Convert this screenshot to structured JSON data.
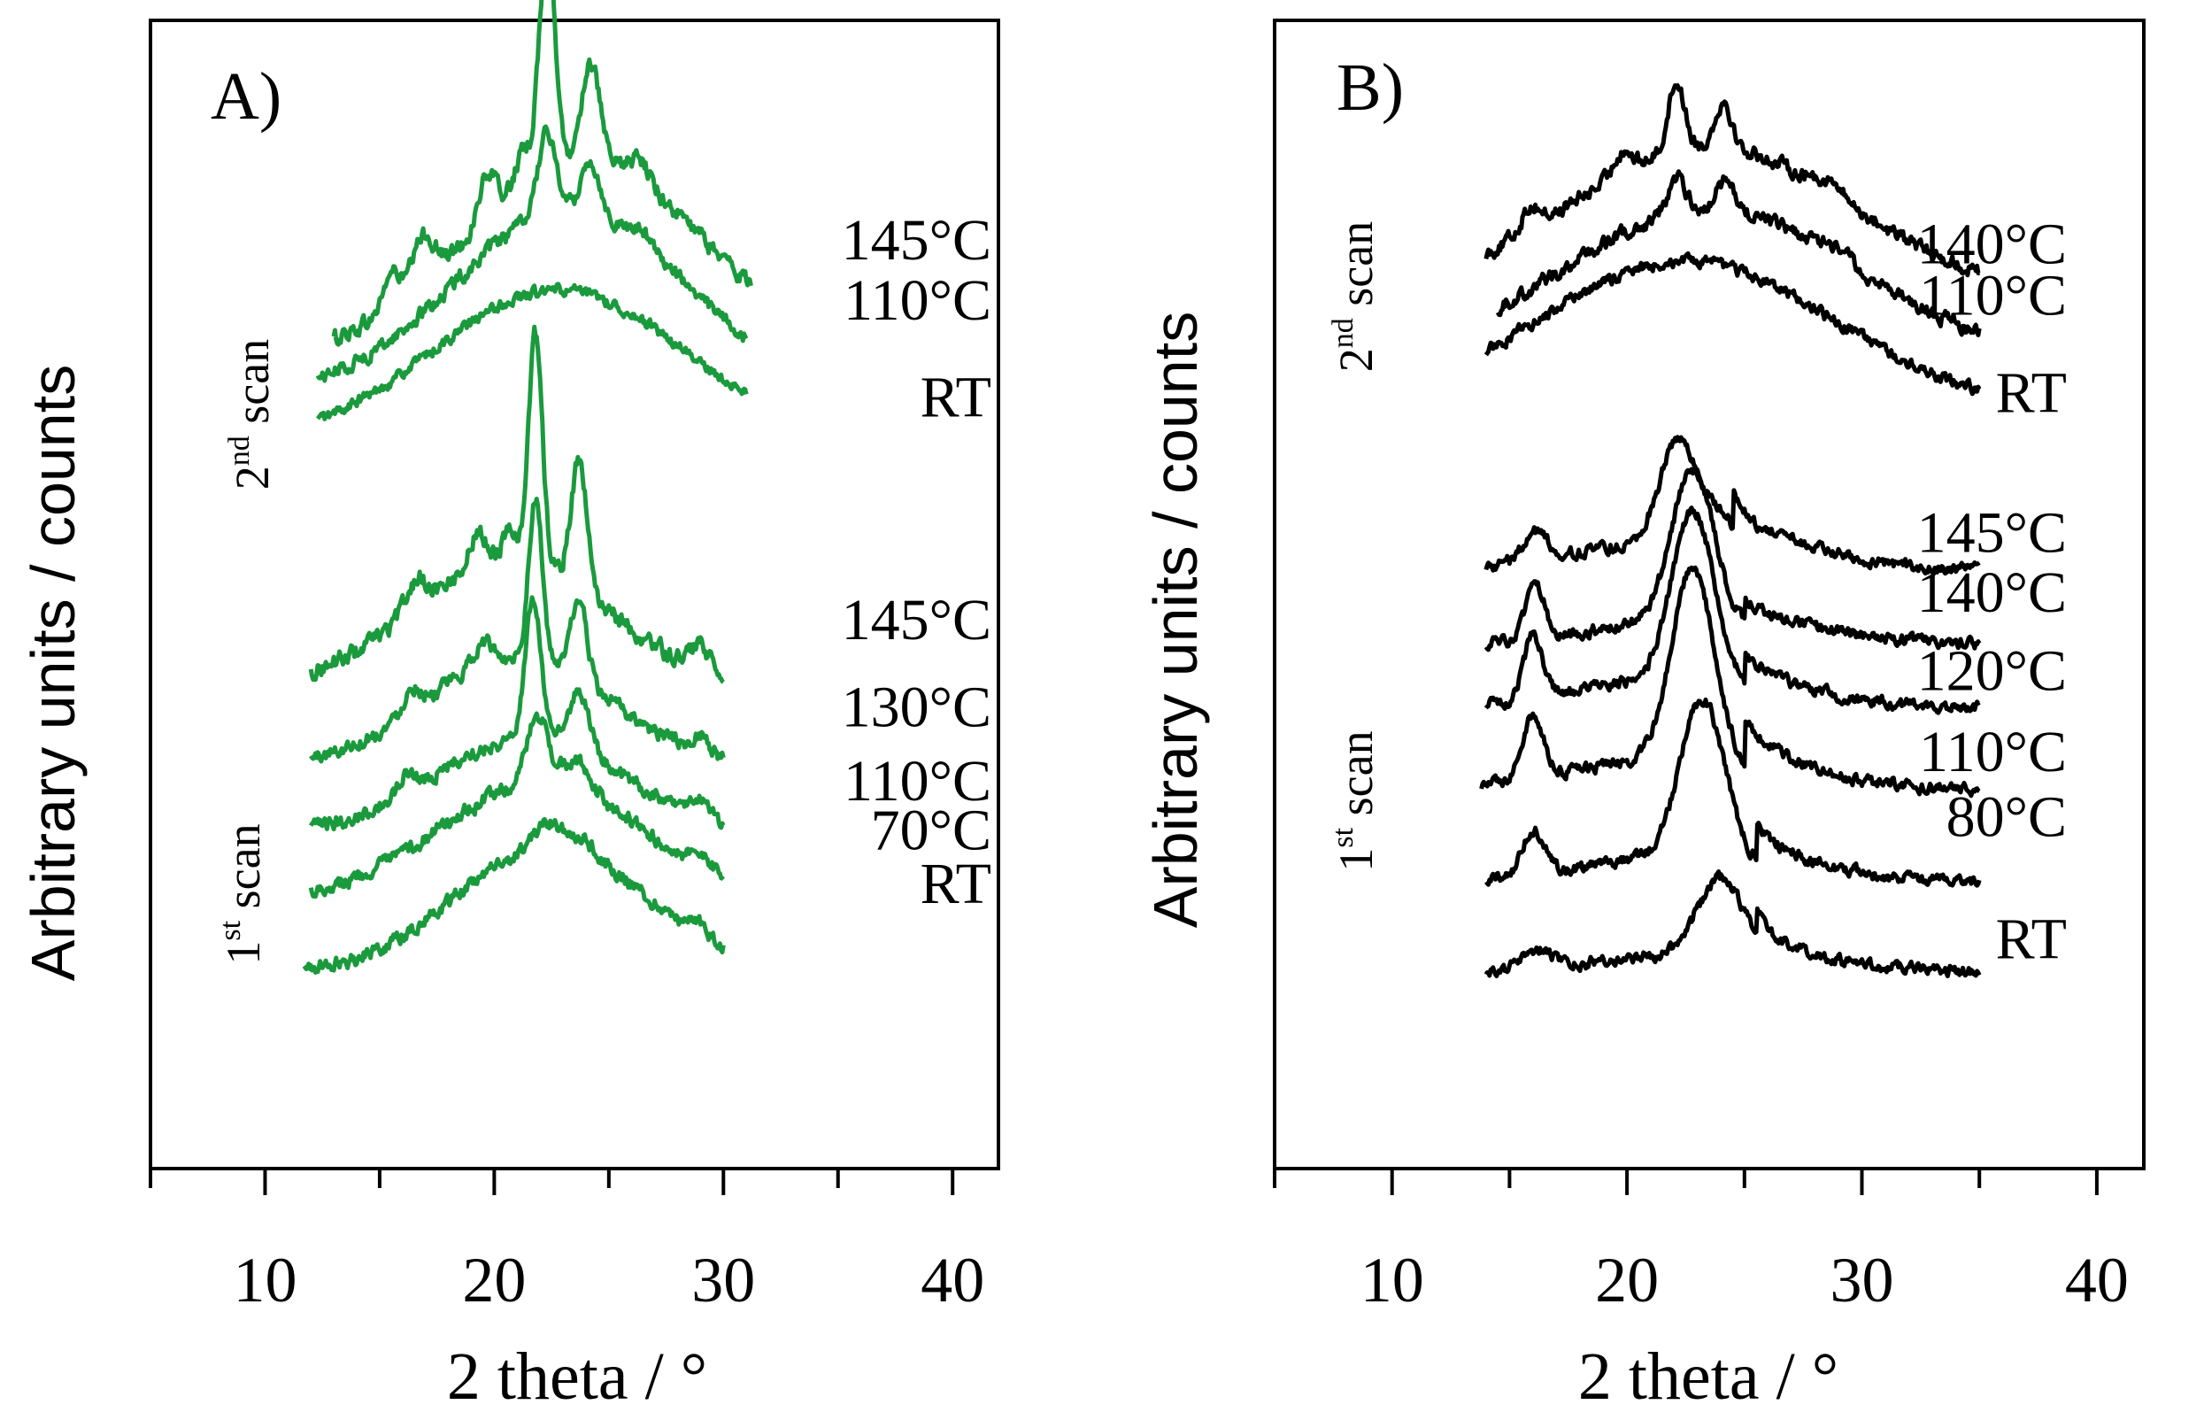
{
  "colors": {
    "panel_a": "#1a9a3c",
    "panel_b": "#000000",
    "axis": "#000000"
  },
  "chart_data": [
    {
      "type": "line",
      "panel_label": "A)",
      "xlabel": "2 theta / °",
      "ylabel": "Arbitrary units / counts",
      "xlim": [
        5,
        42
      ],
      "xticks": [
        "10",
        "20",
        "30",
        "40"
      ],
      "groups": [
        {
          "label_main": "2",
          "label_sup": "nd",
          "label_rest": " scan"
        },
        {
          "label_main": "1",
          "label_sup": "st",
          "label_rest": " scan"
        }
      ],
      "series": [
        {
          "name": "145°C",
          "scan": "2nd",
          "x_range": [
            13,
            31.2
          ],
          "offset": 0.705,
          "noise": 0.006,
          "features": [
            {
              "type": "base",
              "c": 24,
              "w": 5.2,
              "h": 0.17
            },
            {
              "type": "peak",
              "c": 22.3,
              "w": 0.35,
              "h": 0.2
            },
            {
              "type": "peak",
              "c": 24.2,
              "w": 0.4,
              "h": 0.09
            },
            {
              "type": "peak",
              "c": 19.7,
              "w": 0.4,
              "h": 0.04
            },
            {
              "type": "peak",
              "c": 16.9,
              "w": 0.5,
              "h": 0.04
            },
            {
              "type": "peak",
              "c": 15.5,
              "w": 0.35,
              "h": 0.03
            },
            {
              "type": "peak",
              "c": 21.2,
              "w": 0.35,
              "h": 0.03
            },
            {
              "type": "peak",
              "c": 26.3,
              "w": 0.5,
              "h": 0.02
            }
          ]
        },
        {
          "name": "110°C",
          "scan": "2nd",
          "x_range": [
            12.3,
            31
          ],
          "offset": 0.675,
          "noise": 0.005,
          "features": [
            {
              "type": "base",
              "c": 23.3,
              "w": 5.0,
              "h": 0.16
            },
            {
              "type": "peak",
              "c": 22.3,
              "w": 0.4,
              "h": 0.07
            },
            {
              "type": "peak",
              "c": 24.2,
              "w": 0.4,
              "h": 0.045
            },
            {
              "type": "peak",
              "c": 26.5,
              "w": 0.5,
              "h": 0.01
            }
          ]
        },
        {
          "name": "RT",
          "scan": "2nd",
          "x_range": [
            12.3,
            31
          ],
          "offset": 0.63,
          "noise": 0.004,
          "features": [
            {
              "type": "base",
              "c": 22.8,
              "w": 5.5,
              "h": 0.135
            }
          ]
        },
        {
          "name": "145°C",
          "scan": "1st",
          "x_range": [
            12,
            30
          ],
          "offset": 0.42,
          "noise": 0.006,
          "features": [
            {
              "type": "base",
              "c": 20.7,
              "w": 4.2,
              "h": 0.11
            },
            {
              "type": "peak",
              "c": 21.8,
              "w": 0.3,
              "h": 0.2
            },
            {
              "type": "peak",
              "c": 23.7,
              "w": 0.35,
              "h": 0.11
            },
            {
              "type": "peak",
              "c": 19.3,
              "w": 0.4,
              "h": 0.03
            },
            {
              "type": "peak",
              "c": 16.6,
              "w": 0.45,
              "h": 0.025
            },
            {
              "type": "peak",
              "c": 20.7,
              "w": 0.3,
              "h": 0.03
            },
            {
              "type": "peak",
              "c": 29,
              "w": 0.4,
              "h": 0.02
            }
          ]
        },
        {
          "name": "130°C",
          "scan": "1st",
          "x_range": [
            12,
            30
          ],
          "offset": 0.35,
          "noise": 0.005,
          "features": [
            {
              "type": "base",
              "c": 21,
              "w": 4.0,
              "h": 0.095
            },
            {
              "type": "peak",
              "c": 21.8,
              "w": 0.3,
              "h": 0.14
            },
            {
              "type": "peak",
              "c": 23.7,
              "w": 0.35,
              "h": 0.07
            },
            {
              "type": "peak",
              "c": 19.5,
              "w": 0.4,
              "h": 0.02
            },
            {
              "type": "peak",
              "c": 16.4,
              "w": 0.4,
              "h": 0.02
            },
            {
              "type": "peak",
              "c": 29,
              "w": 0.4,
              "h": 0.015
            }
          ]
        },
        {
          "name": "110°C",
          "scan": "1st",
          "x_range": [
            12,
            30
          ],
          "offset": 0.29,
          "noise": 0.005,
          "features": [
            {
              "type": "base",
              "c": 21.5,
              "w": 4.2,
              "h": 0.085
            },
            {
              "type": "peak",
              "c": 21.7,
              "w": 0.35,
              "h": 0.12
            },
            {
              "type": "peak",
              "c": 23.7,
              "w": 0.45,
              "h": 0.05
            },
            {
              "type": "peak",
              "c": 16.2,
              "w": 0.4,
              "h": 0.015
            },
            {
              "type": "peak",
              "c": 29,
              "w": 0.4,
              "h": 0.015
            }
          ]
        },
        {
          "name": "70°C",
          "scan": "1st",
          "x_range": [
            12,
            30
          ],
          "offset": 0.235,
          "noise": 0.005,
          "features": [
            {
              "type": "base",
              "c": 22,
              "w": 4.4,
              "h": 0.1
            },
            {
              "type": "peak",
              "c": 21.9,
              "w": 0.45,
              "h": 0.06
            },
            {
              "type": "peak",
              "c": 23.6,
              "w": 0.6,
              "h": 0.025
            },
            {
              "type": "peak",
              "c": 29,
              "w": 0.4,
              "h": 0.015
            }
          ]
        },
        {
          "name": "RT",
          "scan": "1st",
          "x_range": [
            11.7,
            30
          ],
          "offset": 0.17,
          "noise": 0.005,
          "features": [
            {
              "type": "base",
              "c": 22.5,
              "w": 4.2,
              "h": 0.11
            },
            {
              "type": "peak",
              "c": 22.3,
              "w": 0.5,
              "h": 0.02
            },
            {
              "type": "peak",
              "c": 23.6,
              "w": 0.6,
              "h": 0.015
            },
            {
              "type": "peak",
              "c": 29,
              "w": 0.4,
              "h": 0.01
            }
          ]
        }
      ]
    },
    {
      "type": "line",
      "panel_label": "B)",
      "xlabel": "2 theta / °",
      "ylabel": "Arbitrary units / counts",
      "xlim": [
        5,
        42
      ],
      "xticks": [
        "10",
        "20",
        "30",
        "40"
      ],
      "groups": [
        {
          "label_main": "2",
          "label_sup": "nd",
          "label_rest": " scan"
        },
        {
          "label_main": "1",
          "label_sup": "st",
          "label_rest": " scan"
        }
      ],
      "series": [
        {
          "name": "140°C",
          "scan": "2nd",
          "x_range": [
            14,
            35
          ],
          "offset": 0.76,
          "noise": 0.005,
          "features": [
            {
              "type": "base",
              "c": 23.5,
              "w": 6.0,
              "h": 0.13
            },
            {
              "type": "peak",
              "c": 22.1,
              "w": 0.35,
              "h": 0.06
            },
            {
              "type": "peak",
              "c": 24.1,
              "w": 0.35,
              "h": 0.04
            },
            {
              "type": "peak",
              "c": 19.8,
              "w": 0.35,
              "h": 0.02
            },
            {
              "type": "peak",
              "c": 15.9,
              "w": 0.4,
              "h": 0.02
            },
            {
              "type": "peak",
              "c": 28.6,
              "w": 0.6,
              "h": 0.01
            }
          ]
        },
        {
          "name": "110°C",
          "scan": "2nd",
          "x_range": [
            14.5,
            35
          ],
          "offset": 0.705,
          "noise": 0.005,
          "features": [
            {
              "type": "base",
              "c": 23.5,
              "w": 6.2,
              "h": 0.13
            },
            {
              "type": "peak",
              "c": 22.1,
              "w": 0.4,
              "h": 0.03
            },
            {
              "type": "peak",
              "c": 24.2,
              "w": 0.4,
              "h": 0.025
            },
            {
              "type": "peak",
              "c": 28.9,
              "w": 0.6,
              "h": 0.01
            }
          ]
        },
        {
          "name": "RT",
          "scan": "2nd",
          "x_range": [
            14,
            35
          ],
          "offset": 0.66,
          "noise": 0.004,
          "features": [
            {
              "type": "base",
              "c": 22.5,
              "w": 6.3,
              "h": 0.13
            }
          ]
        },
        {
          "name": "145°C",
          "scan": "1st",
          "x_range": [
            14,
            35
          ],
          "offset": 0.52,
          "noise": 0.004,
          "features": [
            {
              "type": "base",
              "c": 22,
              "w": 4.5,
              "h": 0.025
            },
            {
              "type": "peak",
              "c": 22.2,
              "w": 0.8,
              "h": 0.09
            },
            {
              "type": "peak",
              "c": 24,
              "w": 0.6,
              "h": 0.025
            },
            {
              "type": "peak",
              "c": 16.1,
              "w": 0.5,
              "h": 0.025
            },
            {
              "type": "tail",
              "start": 24.5,
              "h": 0.03,
              "d": 0.3
            }
          ]
        },
        {
          "name": "140°C",
          "scan": "1st",
          "x_range": [
            14,
            35
          ],
          "offset": 0.455,
          "noise": 0.004,
          "features": [
            {
              "type": "base",
              "c": 22,
              "w": 4.0,
              "h": 0.02
            },
            {
              "type": "peak",
              "c": 22.8,
              "w": 0.9,
              "h": 0.135
            },
            {
              "type": "peak",
              "c": 16.1,
              "w": 0.4,
              "h": 0.045
            },
            {
              "type": "tail",
              "start": 25,
              "h": 0.02,
              "d": 0.2
            }
          ]
        },
        {
          "name": "120°C",
          "scan": "1st",
          "x_range": [
            14,
            35
          ],
          "offset": 0.4,
          "noise": 0.004,
          "features": [
            {
              "type": "base",
              "c": 21.5,
              "w": 4.0,
              "h": 0.025
            },
            {
              "type": "peak",
              "c": 22.8,
              "w": 0.9,
              "h": 0.15
            },
            {
              "type": "peak",
              "c": 16.0,
              "w": 0.4,
              "h": 0.055
            },
            {
              "type": "tail",
              "start": 25,
              "h": 0.025,
              "d": 0.3
            }
          ]
        },
        {
          "name": "110°C",
          "scan": "1st",
          "x_range": [
            13.8,
            35
          ],
          "offset": 0.33,
          "noise": 0.004,
          "features": [
            {
              "type": "base",
              "c": 21.5,
              "w": 4.0,
              "h": 0.025
            },
            {
              "type": "peak",
              "c": 22.8,
              "w": 0.9,
              "h": 0.17
            },
            {
              "type": "peak",
              "c": 16.0,
              "w": 0.45,
              "h": 0.055
            },
            {
              "type": "tail",
              "start": 25,
              "h": 0.04,
              "d": 0.4
            }
          ]
        },
        {
          "name": "80°C",
          "scan": "1st",
          "x_range": [
            14,
            35
          ],
          "offset": 0.25,
          "noise": 0.004,
          "features": [
            {
              "type": "base",
              "c": 22,
              "w": 4.0,
              "h": 0.02
            },
            {
              "type": "peak",
              "c": 23.2,
              "w": 0.95,
              "h": 0.14
            },
            {
              "type": "peak",
              "c": 16.0,
              "w": 0.45,
              "h": 0.04
            },
            {
              "type": "tail",
              "start": 25.5,
              "h": 0.03,
              "d": 0.4
            }
          ]
        },
        {
          "name": "RT",
          "scan": "1st",
          "x_range": [
            14,
            35
          ],
          "offset": 0.17,
          "noise": 0.004,
          "features": [
            {
              "type": "base",
              "c": 22,
              "w": 4.0,
              "h": 0.015
            },
            {
              "type": "peak",
              "c": 24,
              "w": 1.0,
              "h": 0.07
            },
            {
              "type": "peak",
              "c": 16.2,
              "w": 0.6,
              "h": 0.015
            },
            {
              "type": "tail",
              "start": 25.5,
              "h": 0.025,
              "d": 0.3
            }
          ]
        }
      ]
    }
  ]
}
